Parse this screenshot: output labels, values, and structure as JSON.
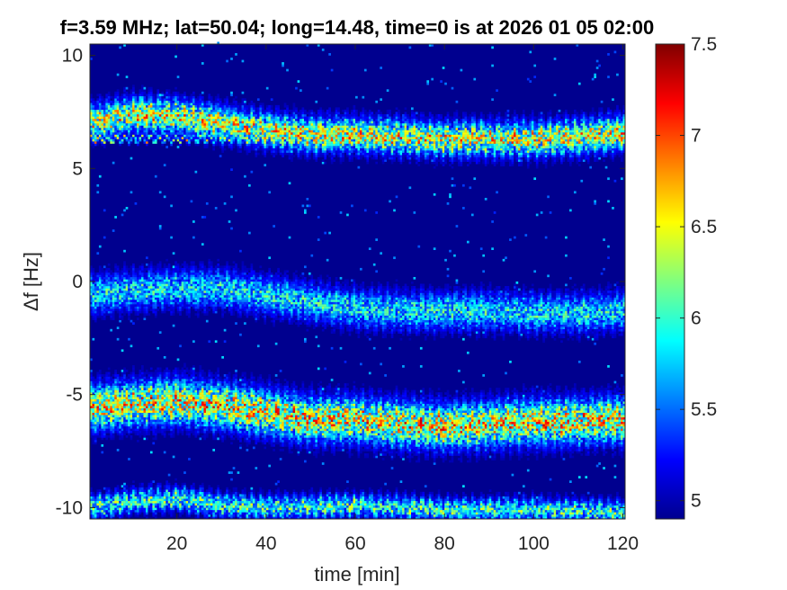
{
  "chart_data": {
    "type": "heatmap",
    "title": "f=3.59 MHz;  lat=50.04; long=14.48, time=0 is at 2026 01 05 02:00",
    "xlabel": "time [min]",
    "ylabel": "Δf [Hz]",
    "xlim": [
      0.5,
      120.5
    ],
    "ylim": [
      -10.5,
      10.5
    ],
    "xticks": [
      20,
      40,
      60,
      80,
      100,
      120
    ],
    "xtick_labels": [
      "20",
      "40",
      "60",
      "80",
      "100",
      "120"
    ],
    "yticks": [
      -10,
      -5,
      0,
      5,
      10
    ],
    "ytick_labels": [
      "-10",
      "-5",
      "0",
      "5",
      "10"
    ],
    "colorbar": {
      "limits": [
        4.9,
        7.5
      ],
      "ticks": [
        5,
        5.5,
        6,
        6.5,
        7,
        7.5
      ],
      "tick_labels": [
        "5",
        "5.5",
        "6",
        "6.5",
        "7",
        "7.5"
      ],
      "colormap": "jet"
    },
    "background_level": 4.95,
    "series": [
      {
        "center_dfreq_hz_by_time": [
          [
            0,
            7.0
          ],
          [
            10,
            7.4
          ],
          [
            20,
            7.3
          ],
          [
            30,
            7.0
          ],
          [
            40,
            6.7
          ],
          [
            50,
            6.5
          ],
          [
            60,
            6.5
          ],
          [
            70,
            6.4
          ],
          [
            80,
            6.3
          ],
          [
            90,
            6.3
          ],
          [
            100,
            6.3
          ],
          [
            110,
            6.4
          ],
          [
            120,
            6.6
          ]
        ],
        "width_hz": 0.9,
        "peak_level": 6.7
      },
      {
        "center_dfreq_hz_by_time": [
          [
            0,
            6.3
          ],
          [
            120,
            6.3
          ]
        ],
        "width_hz": 0.12,
        "peak_level": 6.5
      },
      {
        "center_dfreq_hz_by_time": [
          [
            0,
            -0.6
          ],
          [
            10,
            -0.4
          ],
          [
            20,
            -0.3
          ],
          [
            30,
            -0.3
          ],
          [
            40,
            -0.6
          ],
          [
            50,
            -0.9
          ],
          [
            60,
            -1.2
          ],
          [
            70,
            -1.3
          ],
          [
            80,
            -1.3
          ],
          [
            90,
            -1.3
          ],
          [
            100,
            -1.4
          ],
          [
            110,
            -1.4
          ],
          [
            120,
            -1.3
          ]
        ],
        "width_hz": 1.0,
        "peak_level": 6.0
      },
      {
        "center_dfreq_hz_by_time": [
          [
            0,
            -5.6
          ],
          [
            10,
            -5.4
          ],
          [
            20,
            -5.3
          ],
          [
            30,
            -5.5
          ],
          [
            40,
            -5.8
          ],
          [
            50,
            -6.1
          ],
          [
            60,
            -6.1
          ],
          [
            70,
            -6.3
          ],
          [
            80,
            -6.4
          ],
          [
            90,
            -6.3
          ],
          [
            100,
            -6.2
          ],
          [
            110,
            -6.2
          ],
          [
            120,
            -6.1
          ]
        ],
        "width_hz": 1.2,
        "peak_level": 6.8
      },
      {
        "center_dfreq_hz_by_time": [
          [
            0,
            -10.0
          ],
          [
            10,
            -9.7
          ],
          [
            20,
            -9.6
          ],
          [
            30,
            -9.9
          ],
          [
            40,
            -10.0
          ],
          [
            60,
            -9.9
          ],
          [
            80,
            -10.1
          ],
          [
            100,
            -10.1
          ],
          [
            120,
            -10.2
          ]
        ],
        "width_hz": 0.6,
        "peak_level": 6.2
      }
    ]
  }
}
